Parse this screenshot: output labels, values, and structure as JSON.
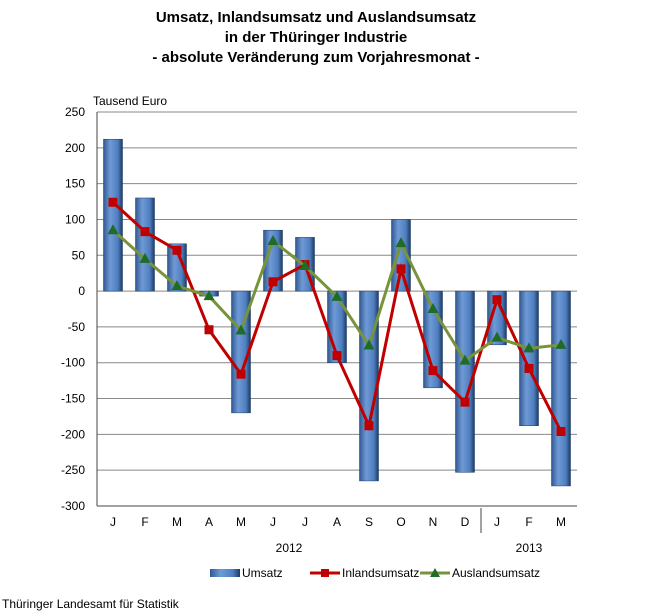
{
  "chart_data": {
    "type": "bar+line",
    "title": [
      "Umsatz, Inlandsumsatz und Auslandsumsatz",
      "in der Thüringer Industrie",
      "- absolute Veränderung zum Vorjahresmonat -"
    ],
    "ylabel": "Tausend Euro",
    "ylim": [
      -300,
      250
    ],
    "yticks": [
      250,
      200,
      150,
      100,
      50,
      0,
      -50,
      -100,
      -150,
      -200,
      -250,
      -300
    ],
    "grid": true,
    "categories": [
      "J",
      "F",
      "M",
      "A",
      "M",
      "J",
      "J",
      "A",
      "S",
      "O",
      "N",
      "D",
      "J",
      "F",
      "M"
    ],
    "year_labels": [
      {
        "label": "2012",
        "from": 0,
        "to": 11
      },
      {
        "label": "2013",
        "from": 12,
        "to": 14
      }
    ],
    "legend_position": "bottom",
    "series": [
      {
        "name": "Umsatz",
        "kind": "bar",
        "color": "#4f81bd",
        "values": [
          212,
          130,
          66,
          -7,
          -170,
          85,
          75,
          -100,
          -265,
          100,
          -135,
          -253,
          -75,
          -188,
          -272
        ]
      },
      {
        "name": "Inlandsumsatz",
        "kind": "line",
        "marker": "square",
        "color": "#c00000",
        "values": [
          124,
          83,
          57,
          -54,
          -116,
          13,
          37,
          -90,
          -188,
          31,
          -111,
          -155,
          -12,
          -108,
          -196
        ]
      },
      {
        "name": "Auslandsumsatz",
        "kind": "line",
        "marker": "triangle",
        "color": "#77933c",
        "marker_color": "#1e6b2a",
        "values": [
          85,
          45,
          7,
          -7,
          -55,
          70,
          35,
          -8,
          -76,
          67,
          -25,
          -97,
          -65,
          -80,
          -75
        ]
      }
    ]
  },
  "footer": "Thüringer Landesamt für Statistik"
}
